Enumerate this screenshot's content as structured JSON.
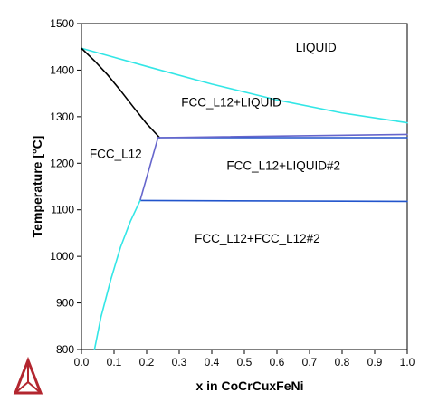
{
  "chart_data": {
    "type": "line",
    "title": "",
    "xlabel": "x in CoCrCuxFeNi",
    "ylabel": "Temperature [°C]",
    "xlim": [
      0,
      1
    ],
    "ylim": [
      800,
      1500
    ],
    "xticks": [
      "0.0",
      "0.1",
      "0.2",
      "0.3",
      "0.4",
      "0.5",
      "0.6",
      "0.7",
      "0.8",
      "0.9",
      "1.0"
    ],
    "yticks": [
      "800",
      "900",
      "1000",
      "1100",
      "1200",
      "1300",
      "1400",
      "1500"
    ],
    "grid": false,
    "colors": {
      "liquidus": "#33e6e6",
      "solidus": "#000000",
      "tie": "#2255cc",
      "boundary": "#6666cc"
    },
    "series": [
      {
        "color": "#33e6e6",
        "x": [
          0.0,
          0.2,
          0.4,
          0.6,
          0.8,
          1.0
        ],
        "y": [
          1447,
          1408,
          1370,
          1336,
          1308,
          1287
        ]
      },
      {
        "color": "#000000",
        "x": [
          0.0,
          0.04,
          0.08,
          0.12,
          0.16,
          0.2,
          0.24
        ],
        "y": [
          1447,
          1420,
          1390,
          1356,
          1320,
          1285,
          1255
        ]
      },
      {
        "color": "#2255cc",
        "x": [
          0.235,
          1.0
        ],
        "y": [
          1255,
          1255
        ]
      },
      {
        "color": "#6666cc",
        "x": [
          0.235,
          1.0
        ],
        "y": [
          1255,
          1262
        ]
      },
      {
        "color": "#6666cc",
        "x": [
          0.235,
          0.18
        ],
        "y": [
          1255,
          1120
        ]
      },
      {
        "color": "#2255cc",
        "x": [
          0.18,
          1.0
        ],
        "y": [
          1120,
          1118
        ]
      },
      {
        "color": "#33e6e6",
        "x": [
          0.04,
          0.06,
          0.09,
          0.12,
          0.15,
          0.18
        ],
        "y": [
          800,
          870,
          950,
          1020,
          1075,
          1120
        ]
      }
    ],
    "annotations": [
      {
        "text": "LIQUID",
        "x": 0.72,
        "y": 1440
      },
      {
        "text": "FCC_L12+LIQUID",
        "x": 0.46,
        "y": 1322
      },
      {
        "text": "FCC_L12",
        "x": 0.105,
        "y": 1211
      },
      {
        "text": "FCC_L12+LIQUID#2",
        "x": 0.62,
        "y": 1186
      },
      {
        "text": "FCC_L12+FCC_L12#2",
        "x": 0.54,
        "y": 1029
      }
    ]
  },
  "logo": {
    "name": "triangle-logo",
    "color": "#b3262f"
  }
}
